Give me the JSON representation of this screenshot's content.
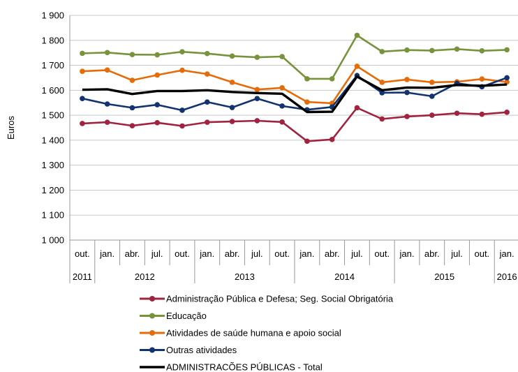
{
  "chart_data": {
    "type": "line",
    "title": "",
    "ylabel": "Euros",
    "ylim": [
      1000,
      1900
    ],
    "yticks": [
      "1 000",
      "1 100",
      "1 200",
      "1 300",
      "1 400",
      "1 500",
      "1 600",
      "1 700",
      "1 800",
      "1 900"
    ],
    "ytick_values": [
      1000,
      1100,
      1200,
      1300,
      1400,
      1500,
      1600,
      1700,
      1800,
      1900
    ],
    "grid": true,
    "legend_position": "bottom",
    "categories": [
      "out.",
      "jan.",
      "abr.",
      "jul.",
      "out.",
      "jan.",
      "abr.",
      "jul.",
      "out.",
      "jan.",
      "abr.",
      "jul.",
      "out.",
      "jan.",
      "abr.",
      "jul.",
      "out.",
      "jan."
    ],
    "year_groups": [
      {
        "label": "2011",
        "count": 1
      },
      {
        "label": "2012",
        "count": 4
      },
      {
        "label": "2013",
        "count": 4
      },
      {
        "label": "2014",
        "count": 4
      },
      {
        "label": "2015",
        "count": 4
      },
      {
        "label": "2016",
        "count": 1
      }
    ],
    "series": [
      {
        "name": "Administração Pública e Defesa; Seg. Social Obrigatória",
        "color": "#A0233F",
        "marker": true,
        "values": [
          1467,
          1472,
          1458,
          1470,
          1457,
          1472,
          1475,
          1478,
          1473,
          1396,
          1403,
          1530,
          1485,
          1495,
          1500,
          1508,
          1504,
          1512
        ]
      },
      {
        "name": "Educação",
        "color": "#77933C",
        "marker": true,
        "values": [
          1748,
          1751,
          1743,
          1742,
          1754,
          1747,
          1737,
          1732,
          1735,
          1646,
          1646,
          1820,
          1755,
          1761,
          1759,
          1765,
          1758,
          1762
        ]
      },
      {
        "name": "Atividades de saúde humana e apoio social",
        "color": "#E46C0A",
        "marker": true,
        "values": [
          1676,
          1681,
          1640,
          1661,
          1680,
          1665,
          1632,
          1603,
          1610,
          1553,
          1548,
          1696,
          1632,
          1643,
          1632,
          1634,
          1645,
          1633
        ]
      },
      {
        "name": "Outras atividades",
        "color": "#12336E",
        "marker": true,
        "values": [
          1567,
          1545,
          1530,
          1542,
          1520,
          1553,
          1531,
          1567,
          1537,
          1522,
          1533,
          1659,
          1590,
          1591,
          1576,
          1628,
          1614,
          1650
        ]
      },
      {
        "name": "ADMINISTRACÕES PÚBLICAS - Total",
        "color": "#000000",
        "marker": false,
        "values": [
          1602,
          1604,
          1585,
          1597,
          1597,
          1600,
          1593,
          1589,
          1586,
          1513,
          1514,
          1655,
          1600,
          1611,
          1610,
          1621,
          1618,
          1623
        ]
      }
    ]
  }
}
